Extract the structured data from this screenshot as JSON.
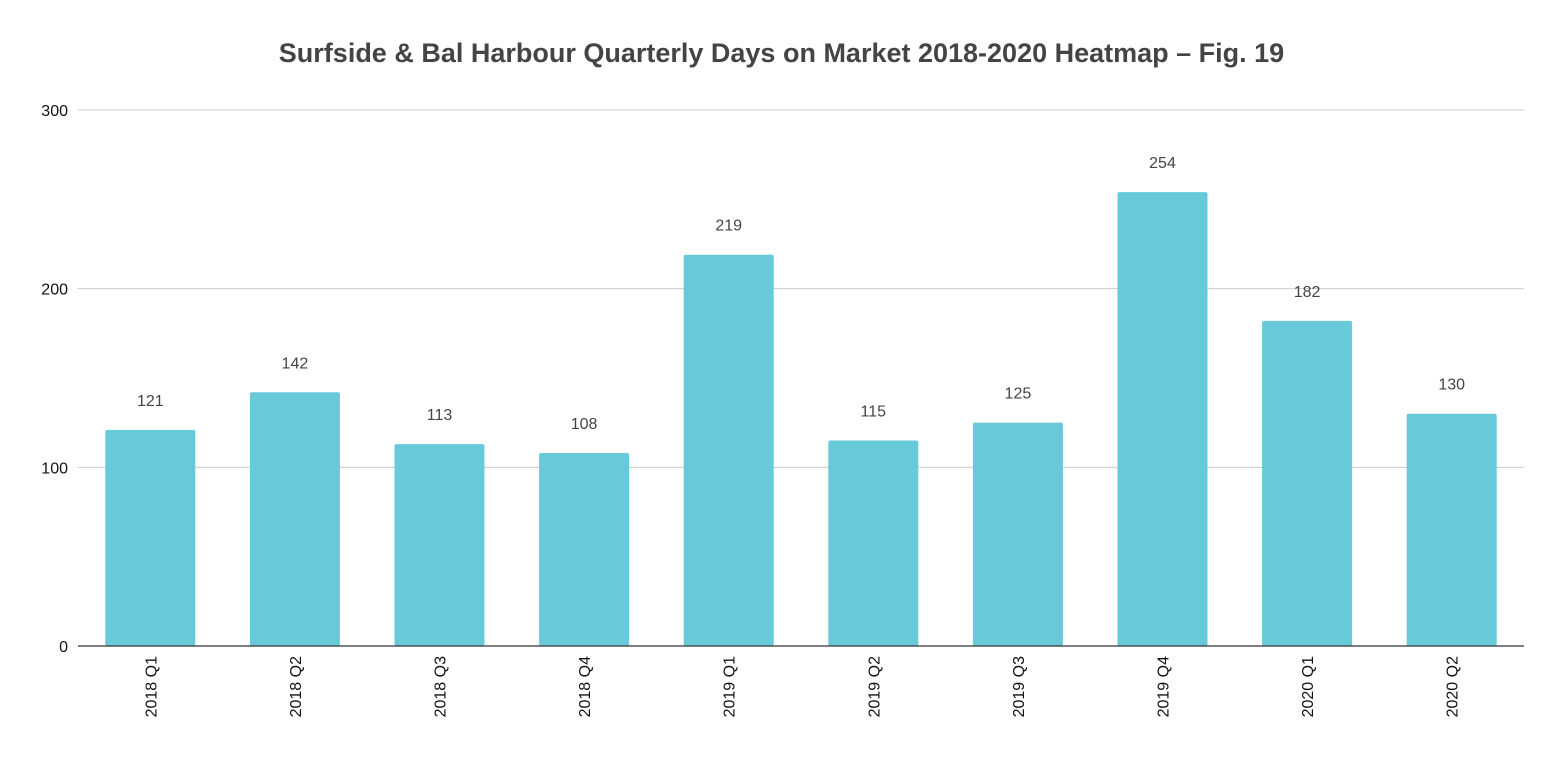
{
  "chart_data": {
    "type": "bar",
    "title": "Surfside & Bal Harbour Quarterly Days on Market 2018-2020 Heatmap – Fig. 19",
    "categories": [
      "2018 Q1",
      "2018 Q2",
      "2018 Q3",
      "2018 Q4",
      "2019 Q1",
      "2019 Q2",
      "2019 Q3",
      "2019 Q4",
      "2020 Q1",
      "2020 Q2"
    ],
    "values": [
      121,
      142,
      113,
      108,
      219,
      115,
      125,
      254,
      182,
      130
    ],
    "xlabel": "",
    "ylabel": "",
    "ylim": [
      0,
      300
    ],
    "yticks": [
      "0",
      "100",
      "200",
      "300"
    ],
    "grid": true,
    "bar_color": "#68c9d9"
  }
}
